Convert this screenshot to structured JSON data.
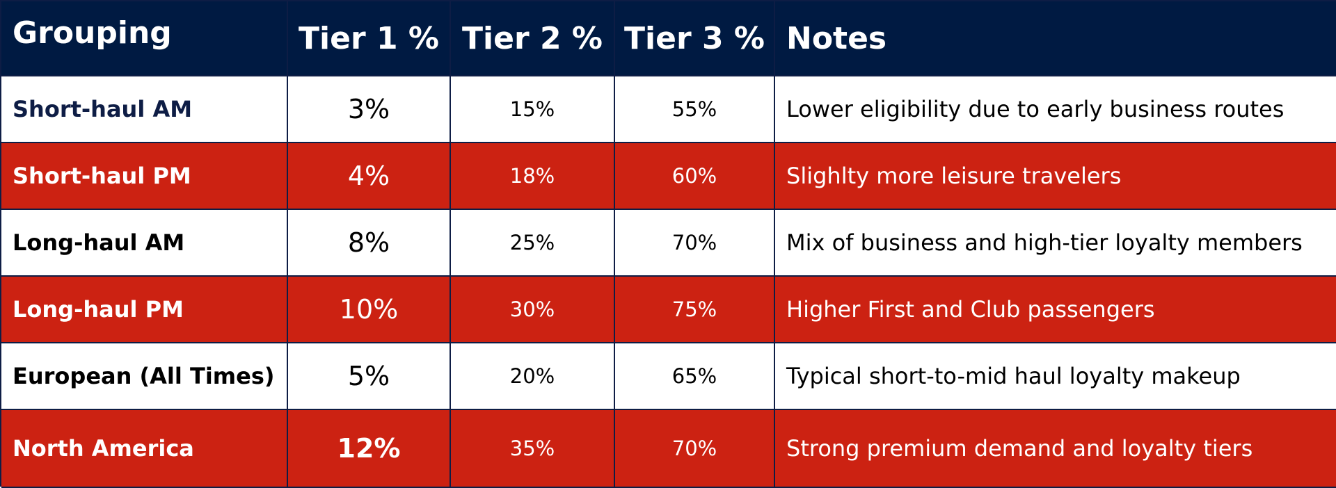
{
  "header": {
    "grouping": "Grouping",
    "tier1": "Tier 1 %",
    "tier2": "Tier 2 %",
    "tier3": "Tier 3 %",
    "notes": "Notes"
  },
  "rows": [
    {
      "grouping": "Short-haul AM",
      "tier1": "3%",
      "tier2": "15%",
      "tier3": "55%",
      "notes": "Lower eligibility due to early business routes"
    },
    {
      "grouping": "Short-haul PM",
      "tier1": "4%",
      "tier2": "18%",
      "tier3": "60%",
      "notes": "Slighlty more leisure travelers"
    },
    {
      "grouping": "Long-haul AM",
      "tier1": "8%",
      "tier2": "25%",
      "tier3": "70%",
      "notes": "Mix of business and high-tier loyalty members"
    },
    {
      "grouping": "Long-haul PM",
      "tier1": "10%",
      "tier2": "30%",
      "tier3": "75%",
      "notes": "Higher First and Club passengers"
    },
    {
      "grouping": "European (All Times)",
      "tier1": "5%",
      "tier2": "20%",
      "tier3": "65%",
      "notes": "Typical short-to-mid haul loyalty makeup"
    },
    {
      "grouping": "North America",
      "tier1": "12%",
      "tier2": "35%",
      "tier3": "70%",
      "notes": "Strong premium demand and loyalty tiers"
    }
  ],
  "colors": {
    "header_bg": "#001a42",
    "red_row_bg": "#cc2212",
    "white_row_bg": "#ffffff",
    "border": "#0e1d45"
  }
}
